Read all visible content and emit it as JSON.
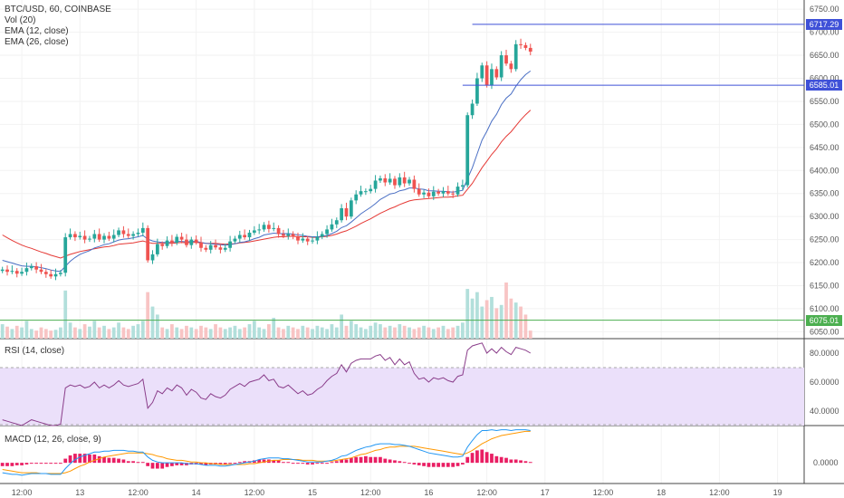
{
  "legends": {
    "main": [
      "BTC/USD, 60, COINBASE",
      "Vol (20)",
      "EMA (12, close)",
      "EMA (26, close)"
    ],
    "rsi": "RSI (14, close)",
    "macd": "MACD (12, 26, close, 9)"
  },
  "price_labels": [
    {
      "text": "6717.29",
      "value": 6717.29,
      "color": "#3f51d8"
    },
    {
      "text": "6585.01",
      "value": 6585.01,
      "color": "#3f51d8"
    },
    {
      "text": "6075.01",
      "value": 6075.01,
      "color": "#4caf50"
    }
  ],
  "colors": {
    "up": "#26a69a",
    "down": "#ef5350",
    "ema12": "#4a6fc4",
    "ema26": "#e53935",
    "rsi_line": "#8a3d8a",
    "rsi_band": "#ebe0fa",
    "macd_line": "#2196f3",
    "signal_line": "#ff9800",
    "hist": "#e91e63"
  },
  "chart_data": {
    "type": "candlestick",
    "title": "BTC/USD, 60, COINBASE",
    "price_ticks": [
      6750,
      6700,
      6650,
      6600,
      6550,
      6500,
      6450,
      6400,
      6350,
      6300,
      6250,
      6200,
      6150,
      6100,
      6050
    ],
    "price_tick_labels": [
      "6750.00",
      "6700.00",
      "6650.00",
      "6600.00",
      "6550.00",
      "6500.00",
      "6450.00",
      "6400.00",
      "6350.00",
      "6300.00",
      "6250.00",
      "6200.00",
      "6150.00",
      "6100.00",
      "6050.00"
    ],
    "price_range": [
      6035,
      6770
    ],
    "rsi_ticks": [
      "80.0000",
      "60.0000",
      "40.0000"
    ],
    "rsi_tick_values": [
      80,
      60,
      40
    ],
    "rsi_range": [
      30,
      90
    ],
    "rsi_band": [
      30,
      70
    ],
    "macd_tick": "0.0000",
    "macd_tick_value": 0,
    "macd_range": [
      -25,
      45
    ],
    "x_labels": [
      {
        "text": "12:00",
        "index": 4
      },
      {
        "text": "13",
        "index": 16
      },
      {
        "text": "12:00",
        "index": 28
      },
      {
        "text": "14",
        "index": 40
      },
      {
        "text": "12:00",
        "index": 52
      },
      {
        "text": "15",
        "index": 64
      },
      {
        "text": "12:00",
        "index": 76
      },
      {
        "text": "16",
        "index": 88
      },
      {
        "text": "12:00",
        "index": 100
      },
      {
        "text": "17",
        "index": 112
      },
      {
        "text": "12:00",
        "index": 124
      },
      {
        "text": "18",
        "index": 136
      },
      {
        "text": "12:00",
        "index": 148
      },
      {
        "text": "19",
        "index": 160
      }
    ],
    "total_slots": 166,
    "closes": [
      6185,
      6180,
      6182,
      6176,
      6180,
      6188,
      6192,
      6185,
      6180,
      6175,
      6170,
      6175,
      6178,
      6255,
      6262,
      6255,
      6258,
      6250,
      6252,
      6262,
      6250,
      6258,
      6252,
      6260,
      6270,
      6262,
      6258,
      6262,
      6265,
      6275,
      6205,
      6218,
      6240,
      6236,
      6248,
      6243,
      6256,
      6250,
      6238,
      6250,
      6244,
      6232,
      6228,
      6238,
      6233,
      6228,
      6232,
      6246,
      6252,
      6260,
      6255,
      6265,
      6270,
      6272,
      6282,
      6273,
      6275,
      6262,
      6258,
      6262,
      6256,
      6248,
      6252,
      6246,
      6248,
      6256,
      6262,
      6272,
      6283,
      6292,
      6318,
      6300,
      6335,
      6348,
      6355,
      6355,
      6360,
      6378,
      6383,
      6374,
      6382,
      6368,
      6385,
      6372,
      6380,
      6360,
      6348,
      6352,
      6344,
      6354,
      6350,
      6355,
      6350,
      6348,
      6365,
      6368,
      6520,
      6545,
      6600,
      6628,
      6585,
      6620,
      6602,
      6650,
      6632,
      6620,
      6674,
      6672,
      6666,
      6658
    ],
    "opens": [
      6182,
      6185,
      6180,
      6182,
      6176,
      6180,
      6188,
      6192,
      6185,
      6180,
      6175,
      6170,
      6175,
      6178,
      6255,
      6262,
      6255,
      6258,
      6250,
      6252,
      6262,
      6250,
      6258,
      6252,
      6260,
      6270,
      6262,
      6258,
      6262,
      6265,
      6275,
      6205,
      6218,
      6240,
      6236,
      6248,
      6243,
      6256,
      6250,
      6238,
      6250,
      6244,
      6232,
      6228,
      6238,
      6233,
      6228,
      6232,
      6246,
      6252,
      6260,
      6255,
      6265,
      6270,
      6272,
      6282,
      6273,
      6275,
      6262,
      6258,
      6262,
      6256,
      6248,
      6252,
      6246,
      6248,
      6256,
      6262,
      6272,
      6283,
      6292,
      6318,
      6300,
      6335,
      6348,
      6355,
      6355,
      6360,
      6378,
      6383,
      6374,
      6382,
      6368,
      6385,
      6372,
      6380,
      6360,
      6348,
      6352,
      6344,
      6354,
      6350,
      6355,
      6350,
      6348,
      6365,
      6368,
      6520,
      6545,
      6600,
      6628,
      6585,
      6620,
      6602,
      6650,
      6632,
      6620,
      6674,
      6672,
      6666
    ],
    "volumes": [
      18,
      15,
      12,
      16,
      14,
      22,
      12,
      10,
      14,
      12,
      10,
      11,
      14,
      60,
      20,
      14,
      12,
      18,
      15,
      22,
      14,
      16,
      12,
      14,
      20,
      14,
      12,
      16,
      18,
      22,
      58,
      40,
      30,
      14,
      12,
      18,
      14,
      12,
      16,
      14,
      12,
      16,
      14,
      12,
      18,
      14,
      12,
      14,
      16,
      12,
      14,
      18,
      22,
      14,
      12,
      18,
      26,
      14,
      12,
      16,
      14,
      12,
      16,
      14,
      12,
      16,
      14,
      12,
      18,
      14,
      30,
      16,
      22,
      18,
      14,
      12,
      16,
      20,
      18,
      14,
      16,
      14,
      18,
      16,
      14,
      12,
      14,
      16,
      14,
      12,
      14,
      16,
      12,
      14,
      16,
      20,
      62,
      50,
      58,
      40,
      48,
      52,
      38,
      42,
      70,
      50,
      45,
      40,
      30,
      10
    ],
    "ema12": [
      6205,
      6202,
      6199,
      6196,
      6193,
      6192,
      6192,
      6191,
      6189,
      6187,
      6184,
      6182,
      6181,
      6192,
      6203,
      6211,
      6218,
      6222,
      6226,
      6232,
      6235,
      6239,
      6241,
      6245,
      6249,
      6251,
      6252,
      6254,
      6256,
      6259,
      6251,
      6247,
      6245,
      6244,
      6244,
      6244,
      6246,
      6246,
      6245,
      6246,
      6246,
      6244,
      6242,
      6241,
      6240,
      6239,
      6238,
      6239,
      6241,
      6244,
      6245,
      6248,
      6252,
      6255,
      6260,
      6262,
      6264,
      6263,
      6263,
      6263,
      6262,
      6260,
      6259,
      6257,
      6256,
      6256,
      6257,
      6259,
      6263,
      6268,
      6276,
      6280,
      6288,
      6297,
      6306,
      6313,
      6320,
      6328,
      6337,
      6343,
      6349,
      6351,
      6356,
      6358,
      6362,
      6362,
      6360,
      6359,
      6356,
      6356,
      6355,
      6355,
      6354,
      6353,
      6355,
      6357,
      6382,
      6406,
      6436,
      6466,
      6485,
      6507,
      6522,
      6543,
      6557,
      6566,
      6583,
      6597,
      6608,
      6616
    ],
    "ema26": [
      6260,
      6254,
      6248,
      6243,
      6238,
      6234,
      6231,
      6227,
      6223,
      6220,
      6216,
      6213,
      6210,
      6214,
      6218,
      6221,
      6224,
      6226,
      6228,
      6230,
      6232,
      6234,
      6235,
      6237,
      6240,
      6241,
      6242,
      6243,
      6245,
      6247,
      6244,
      6242,
      6242,
      6242,
      6242,
      6242,
      6243,
      6244,
      6243,
      6244,
      6244,
      6243,
      6242,
      6242,
      6242,
      6241,
      6240,
      6241,
      6241,
      6243,
      6244,
      6245,
      6247,
      6249,
      6251,
      6253,
      6255,
      6256,
      6256,
      6257,
      6257,
      6256,
      6256,
      6256,
      6255,
      6255,
      6256,
      6257,
      6259,
      6262,
      6266,
      6269,
      6274,
      6279,
      6285,
      6290,
      6295,
      6301,
      6307,
      6312,
      6317,
      6321,
      6326,
      6330,
      6334,
      6336,
      6337,
      6338,
      6339,
      6340,
      6341,
      6342,
      6342,
      6343,
      6345,
      6346,
      6359,
      6372,
      6389,
      6406,
      6420,
      6435,
      6447,
      6462,
      6474,
      6484,
      6497,
      6510,
      6521,
      6531
    ],
    "rsi": [
      34,
      33,
      32,
      31,
      30,
      32,
      34,
      33,
      32,
      31,
      30,
      30,
      31,
      56,
      58,
      57,
      58,
      56,
      57,
      60,
      56,
      58,
      56,
      58,
      61,
      58,
      57,
      58,
      59,
      62,
      42,
      46,
      54,
      52,
      56,
      54,
      58,
      56,
      51,
      55,
      53,
      49,
      48,
      52,
      50,
      49,
      51,
      55,
      57,
      59,
      57,
      60,
      61,
      62,
      65,
      61,
      62,
      57,
      56,
      58,
      55,
      52,
      54,
      51,
      52,
      55,
      57,
      61,
      64,
      66,
      72,
      67,
      73,
      75,
      76,
      76,
      76,
      78,
      79,
      75,
      77,
      72,
      76,
      72,
      74,
      66,
      62,
      63,
      60,
      63,
      62,
      63,
      61,
      60,
      64,
      65,
      82,
      85,
      86,
      87,
      80,
      83,
      80,
      84,
      81,
      79,
      84,
      83,
      82,
      80
    ],
    "macd": [
      -12,
      -13,
      -14,
      -14,
      -15,
      -14,
      -13,
      -13,
      -13,
      -13,
      -14,
      -14,
      -14,
      -7,
      -1,
      4,
      7,
      9,
      11,
      13,
      13,
      14,
      14,
      15,
      15,
      15,
      14,
      14,
      13,
      13,
      7,
      3,
      1,
      0,
      0,
      0,
      0,
      0,
      -1,
      -1,
      -1,
      -2,
      -3,
      -3,
      -3,
      -4,
      -4,
      -3,
      -2,
      -1,
      0,
      1,
      2,
      4,
      5,
      6,
      6,
      6,
      5,
      5,
      4,
      3,
      2,
      1,
      1,
      1,
      1,
      2,
      3,
      5,
      8,
      9,
      12,
      15,
      17,
      19,
      20,
      22,
      23,
      23,
      23,
      22,
      22,
      21,
      20,
      18,
      16,
      14,
      12,
      11,
      10,
      9,
      8,
      7,
      7,
      8,
      19,
      27,
      34,
      39,
      39,
      40,
      39,
      40,
      40,
      39,
      40,
      40,
      40,
      39
    ],
    "signal": [
      -8,
      -9,
      -10,
      -11,
      -12,
      -12,
      -12,
      -12,
      -13,
      -13,
      -13,
      -13,
      -13,
      -12,
      -10,
      -7,
      -4,
      -2,
      1,
      3,
      5,
      7,
      8,
      9,
      10,
      11,
      12,
      12,
      12,
      12,
      11,
      10,
      8,
      7,
      5,
      4,
      3,
      3,
      2,
      1,
      1,
      0,
      0,
      -1,
      -1,
      -2,
      -2,
      -2,
      -2,
      -2,
      -2,
      -1,
      -1,
      0,
      1,
      2,
      3,
      3,
      4,
      4,
      4,
      4,
      3,
      3,
      3,
      2,
      2,
      2,
      2,
      3,
      4,
      5,
      6,
      8,
      10,
      11,
      13,
      15,
      16,
      18,
      19,
      19,
      20,
      20,
      20,
      20,
      19,
      18,
      17,
      16,
      15,
      14,
      13,
      12,
      11,
      10,
      12,
      15,
      19,
      23,
      26,
      29,
      31,
      33,
      34,
      35,
      36,
      37,
      38,
      38
    ]
  }
}
